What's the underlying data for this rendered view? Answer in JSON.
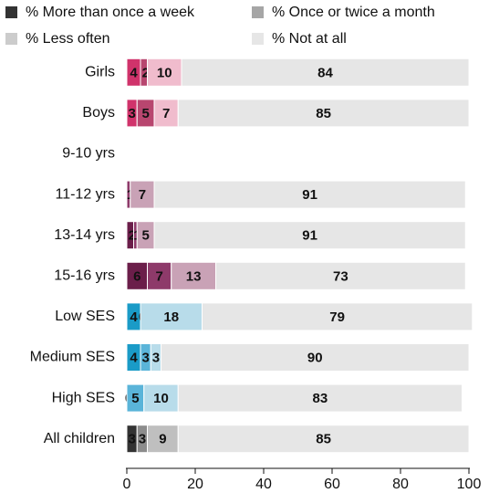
{
  "chart_data": {
    "type": "stacked_barh",
    "categories": [
      "Girls",
      "Boys",
      "9-10 yrs",
      "11-12 yrs",
      "13-14 yrs",
      "15-16 yrs",
      "Low SES",
      "Medium SES",
      "High SES",
      "All children"
    ],
    "series": [
      {
        "name": "% More than once a week",
        "color": "#333333",
        "values": [
          4,
          3,
          null,
          null,
          2,
          6,
          4,
          4,
          0,
          3
        ]
      },
      {
        "name": "% Once or twice a month",
        "color": "#a6a6a6",
        "values": [
          2,
          5,
          null,
          1,
          1,
          7,
          0,
          3,
          5,
          3
        ]
      },
      {
        "name": "% Less often",
        "color": "#cccccc",
        "values": [
          10,
          7,
          null,
          7,
          5,
          13,
          18,
          3,
          10,
          9
        ]
      },
      {
        "name": "% Not at all",
        "color": "#e6e6e6",
        "values": [
          84,
          85,
          null,
          91,
          91,
          73,
          79,
          90,
          83,
          85
        ]
      }
    ],
    "category_colors": [
      [
        "#d0336b",
        "#b8466f",
        "#f0bccd",
        "#e6e6e6"
      ],
      [
        "#d0336b",
        "#b8466f",
        "#f0bccd",
        "#e6e6e6"
      ],
      [
        "#6b1e4a",
        "#8e3a6a",
        "#c9a2b6",
        "#e6e6e6"
      ],
      [
        "#6b1e4a",
        "#8e3a6a",
        "#c9a2b6",
        "#e6e6e6"
      ],
      [
        "#6b1e4a",
        "#8e3a6a",
        "#c9a2b6",
        "#e6e6e6"
      ],
      [
        "#6b1e4a",
        "#8e3a6a",
        "#c9a2b6",
        "#e6e6e6"
      ],
      [
        "#1a9bc7",
        "#5ab4d9",
        "#b8dcea",
        "#e6e6e6"
      ],
      [
        "#1a9bc7",
        "#5ab4d9",
        "#b8dcea",
        "#e6e6e6"
      ],
      [
        "#1a9bc7",
        "#5ab4d9",
        "#b8dcea",
        "#e6e6e6"
      ],
      [
        "#333333",
        "#8c8c8c",
        "#bfbfbf",
        "#e6e6e6"
      ]
    ],
    "xlim": [
      0,
      100
    ],
    "xticks": [
      0,
      20,
      40,
      60,
      80,
      100
    ]
  }
}
